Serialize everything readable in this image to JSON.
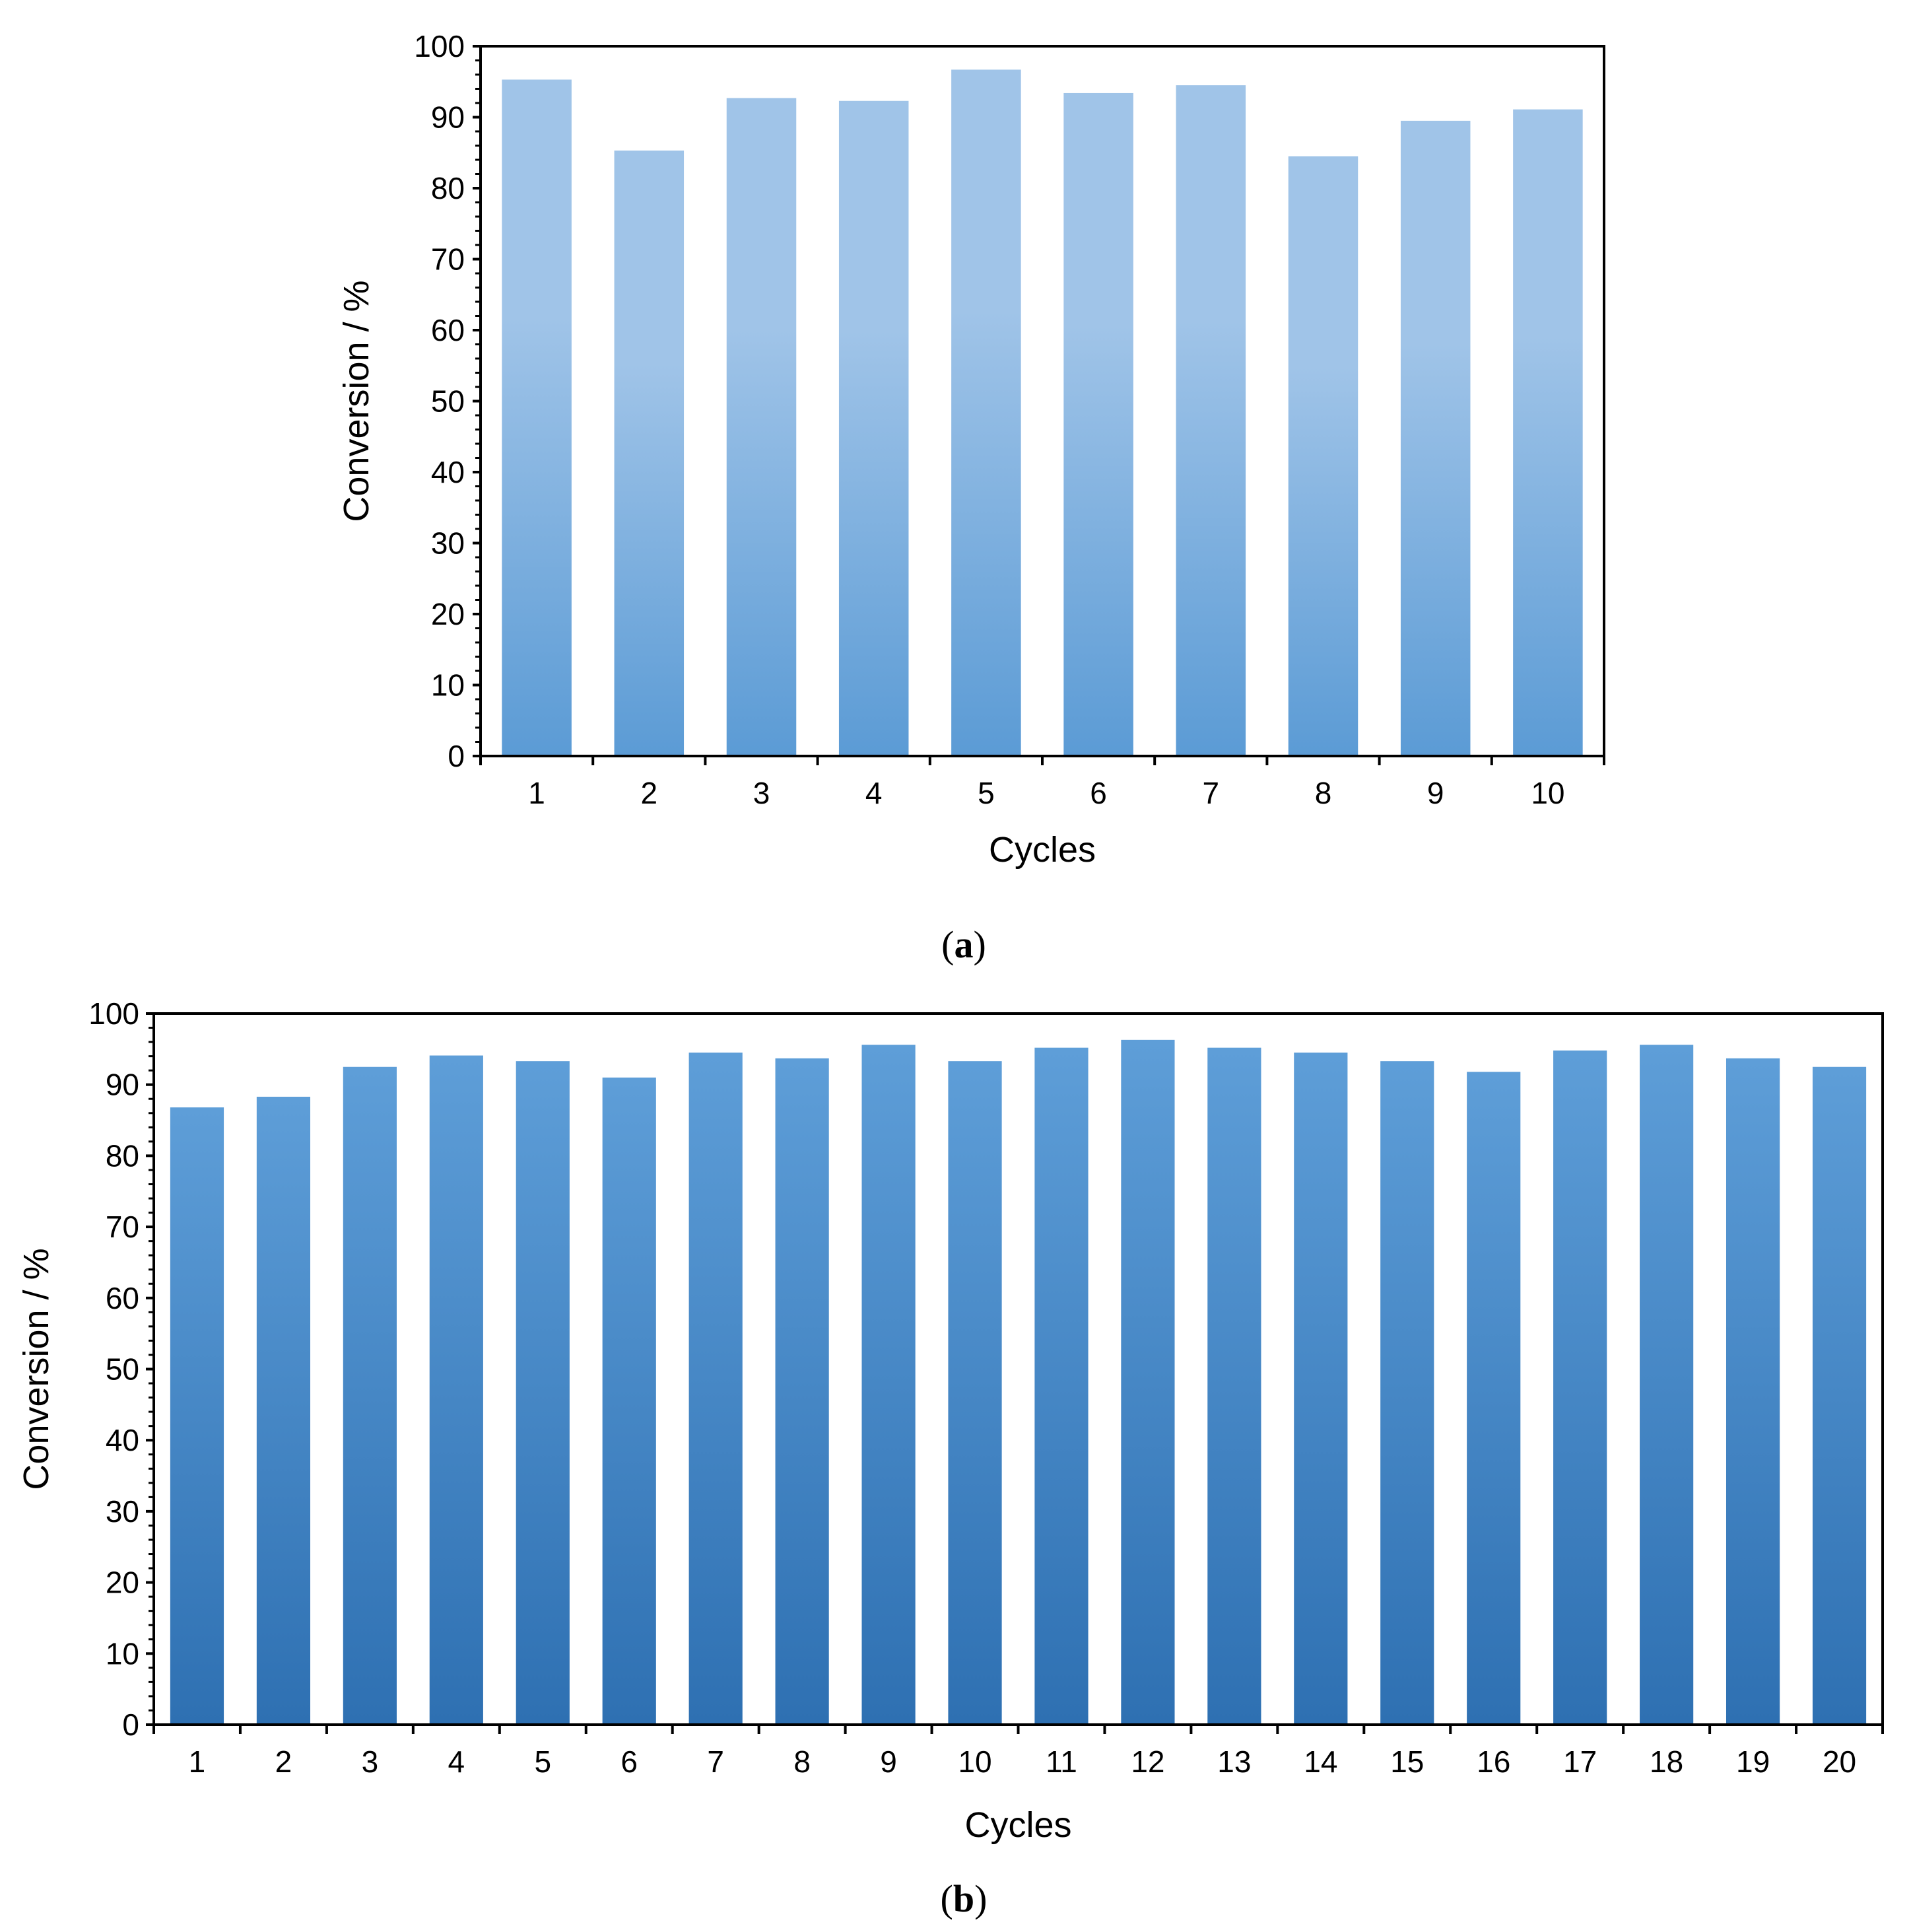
{
  "chart_data": [
    {
      "type": "bar",
      "panel_label": "a",
      "xlabel": "Cycles",
      "ylabel": "Conversion / %",
      "ylim": [
        0,
        100
      ],
      "yticks": [
        0,
        10,
        20,
        30,
        40,
        50,
        60,
        70,
        80,
        90,
        100
      ],
      "categories": [
        "1",
        "2",
        "3",
        "4",
        "5",
        "6",
        "7",
        "8",
        "9",
        "10"
      ],
      "values": [
        95.3,
        85.3,
        92.7,
        92.3,
        96.7,
        93.4,
        94.5,
        84.5,
        89.5,
        91.1
      ],
      "grid": false,
      "legend": "none",
      "colors": {
        "bar_top": "#a0c4e8",
        "bar_bottom": "#5b9bd5"
      }
    },
    {
      "type": "bar",
      "panel_label": "b",
      "xlabel": "Cycles",
      "ylabel": "Conversion / %",
      "ylim": [
        0,
        100
      ],
      "yticks": [
        0,
        10,
        20,
        30,
        40,
        50,
        60,
        70,
        80,
        90,
        100
      ],
      "categories": [
        "1",
        "2",
        "3",
        "4",
        "5",
        "6",
        "7",
        "8",
        "9",
        "10",
        "11",
        "12",
        "13",
        "14",
        "15",
        "16",
        "17",
        "18",
        "19",
        "20"
      ],
      "values": [
        86.8,
        88.3,
        92.5,
        94.1,
        93.3,
        91.0,
        94.5,
        93.7,
        95.6,
        93.3,
        95.2,
        96.3,
        95.2,
        94.5,
        93.3,
        91.8,
        94.8,
        95.6,
        93.7,
        92.5
      ],
      "grid": false,
      "legend": "none",
      "colors": {
        "bar_top": "#5e9ed8",
        "bar_bottom": "#2e70b2"
      }
    }
  ]
}
